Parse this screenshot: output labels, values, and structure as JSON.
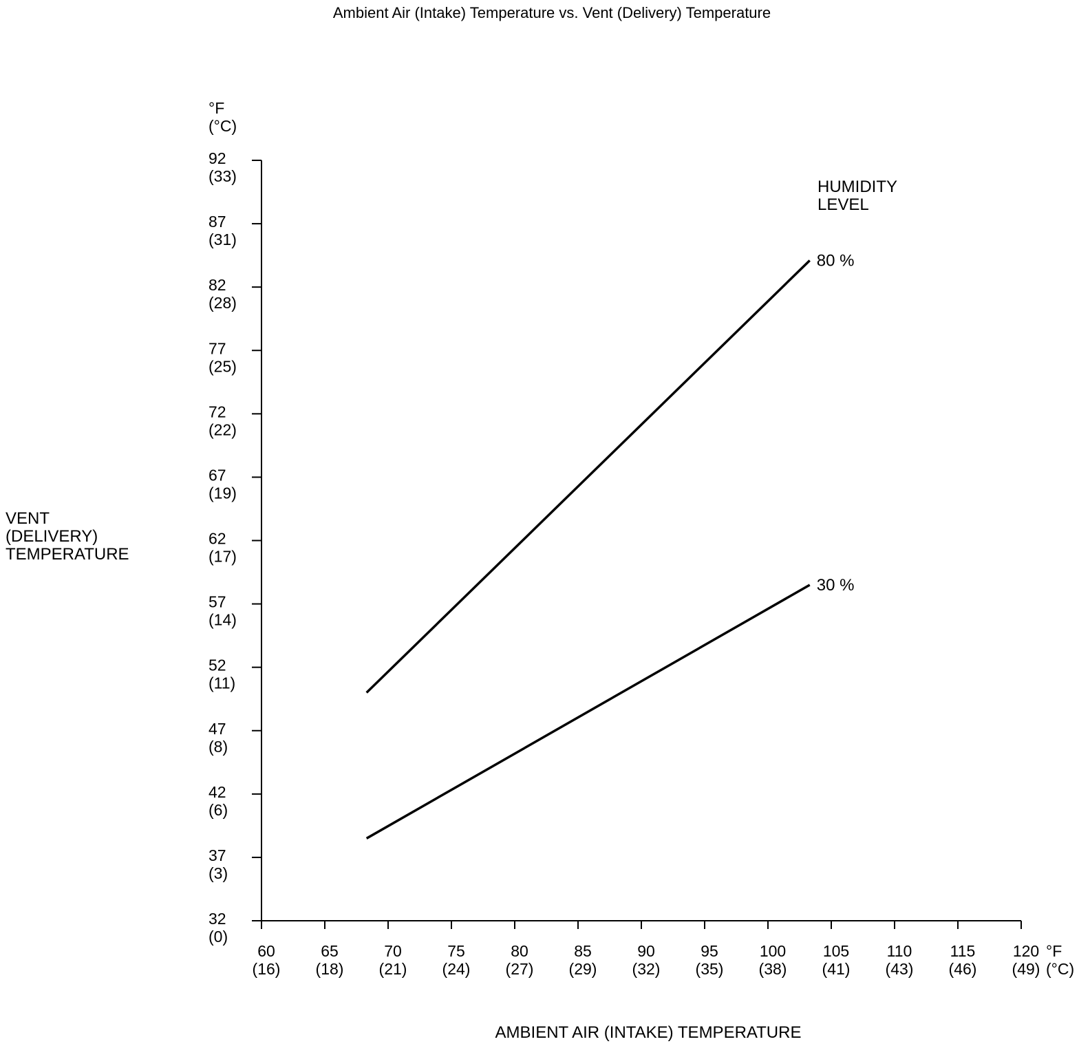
{
  "chart_data": {
    "type": "line",
    "title": "Ambient Air (Intake) Temperature vs. Vent (Delivery) Temperature",
    "xlabel": "AMBIENT AIR (INTAKE) TEMPERATURE",
    "ylabel": [
      "VENT",
      "(DELIVERY)",
      "TEMPERATURE"
    ],
    "x_unit": [
      "°F",
      "(°C)"
    ],
    "y_unit": [
      "°F",
      "(°C)"
    ],
    "legend_title": [
      "HUMIDITY",
      "LEVEL"
    ],
    "xlim": [
      60,
      120
    ],
    "ylim": [
      32,
      92
    ],
    "grid": false,
    "x_ticks": [
      {
        "f": "60",
        "c": "(16)"
      },
      {
        "f": "65",
        "c": "(18)"
      },
      {
        "f": "70",
        "c": "(21)"
      },
      {
        "f": "75",
        "c": "(24)"
      },
      {
        "f": "80",
        "c": "(27)"
      },
      {
        "f": "85",
        "c": "(29)"
      },
      {
        "f": "90",
        "c": "(32)"
      },
      {
        "f": "95",
        "c": "(35)"
      },
      {
        "f": "100",
        "c": "(38)"
      },
      {
        "f": "105",
        "c": "(41)"
      },
      {
        "f": "110",
        "c": "(43)"
      },
      {
        "f": "115",
        "c": "(46)"
      },
      {
        "f": "120",
        "c": "(49)"
      }
    ],
    "y_ticks": [
      {
        "f": "32",
        "c": "(0)"
      },
      {
        "f": "37",
        "c": "(3)"
      },
      {
        "f": "42",
        "c": "(6)"
      },
      {
        "f": "47",
        "c": "(8)"
      },
      {
        "f": "52",
        "c": "(11)"
      },
      {
        "f": "57",
        "c": "(14)"
      },
      {
        "f": "62",
        "c": "(17)"
      },
      {
        "f": "67",
        "c": "(19)"
      },
      {
        "f": "72",
        "c": "(22)"
      },
      {
        "f": "77",
        "c": "(25)"
      },
      {
        "f": "82",
        "c": "(28)"
      },
      {
        "f": "87",
        "c": "(31)"
      },
      {
        "f": "92",
        "c": "(33)"
      }
    ],
    "series": [
      {
        "name": "80 %",
        "x": [
          68.3,
          103.3
        ],
        "y": [
          50.0,
          84.1
        ]
      },
      {
        "name": "30 %",
        "x": [
          68.3,
          103.3
        ],
        "y": [
          38.5,
          58.5
        ]
      }
    ]
  }
}
